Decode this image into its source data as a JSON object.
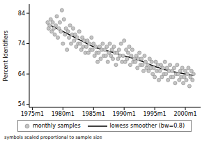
{
  "chart_data": {
    "type": "scatter",
    "y_label": "Percent Identifiers",
    "note": "symbols scaled proportional to sample size",
    "xlim": [
      174,
      510
    ],
    "ylim": [
      53,
      87
    ],
    "xticks": [
      {
        "value": 180,
        "label": "1975m1"
      },
      {
        "value": 240,
        "label": "1980m1"
      },
      {
        "value": 300,
        "label": "1985m1"
      },
      {
        "value": 360,
        "label": "1990m1"
      },
      {
        "value": 420,
        "label": "1995m1"
      },
      {
        "value": 480,
        "label": "2000m1"
      }
    ],
    "yticks": [
      54,
      64,
      74,
      84
    ],
    "legend": "bottom",
    "series": [
      {
        "name": "monthly samples",
        "type": "scatter",
        "marker": "circle",
        "color": "#c4c4c4",
        "x": [
          210,
          212,
          214,
          216,
          218,
          220,
          222,
          224,
          226,
          228,
          230,
          232,
          234,
          236,
          238,
          240,
          242,
          244,
          246,
          248,
          250,
          252,
          254,
          256,
          258,
          260,
          262,
          264,
          266,
          268,
          270,
          272,
          274,
          276,
          278,
          280,
          282,
          284,
          286,
          288,
          290,
          292,
          294,
          296,
          298,
          300,
          302,
          304,
          306,
          308,
          310,
          312,
          314,
          316,
          318,
          320,
          322,
          324,
          326,
          328,
          330,
          332,
          334,
          336,
          338,
          340,
          342,
          344,
          346,
          348,
          350,
          352,
          354,
          356,
          358,
          360,
          362,
          364,
          366,
          368,
          370,
          372,
          374,
          376,
          378,
          380,
          382,
          384,
          386,
          388,
          390,
          392,
          394,
          396,
          398,
          400,
          402,
          404,
          406,
          408,
          410,
          412,
          414,
          416,
          418,
          420,
          422,
          424,
          426,
          428,
          430,
          432,
          434,
          436,
          438,
          440,
          442,
          444,
          446,
          448,
          450,
          452,
          454,
          456,
          458,
          460,
          462,
          464,
          466,
          468,
          470,
          472,
          474,
          476,
          478,
          480,
          482,
          484,
          486,
          488,
          490,
          492,
          494,
          496
        ],
        "values": [
          81,
          79,
          80,
          82,
          78,
          81,
          79,
          77,
          80,
          83,
          76,
          79,
          81,
          78,
          85,
          74,
          82,
          77,
          79,
          72,
          78,
          76,
          80,
          74,
          77,
          79,
          75,
          77,
          73,
          76,
          74,
          78,
          74,
          72,
          76,
          73,
          75,
          71,
          73,
          75,
          71,
          74,
          72,
          76,
          72,
          74,
          70,
          73,
          71,
          68,
          71,
          73,
          69,
          72,
          74,
          70,
          72,
          70,
          73,
          68,
          71,
          74,
          70,
          72,
          69,
          73,
          71,
          67,
          71,
          69,
          72,
          70,
          74,
          68,
          70,
          75,
          68,
          72,
          69,
          71,
          73,
          67,
          70,
          72,
          68,
          69,
          68,
          70,
          66,
          69,
          71,
          67,
          69,
          67,
          65,
          70,
          68,
          66,
          67,
          65,
          69,
          66,
          68,
          64,
          66,
          63,
          68,
          65,
          67,
          62,
          65,
          67,
          63,
          66,
          64,
          68,
          64,
          66,
          62,
          65,
          67,
          63,
          65,
          63,
          66,
          61,
          64,
          67,
          64,
          62,
          65,
          63,
          66,
          61,
          63,
          65,
          62,
          64,
          66,
          60,
          63,
          65,
          62,
          64
        ]
      },
      {
        "name": "lowess smoother (bw=0.8)",
        "type": "line",
        "color": "#000000",
        "x": [
          210,
          240,
          270,
          300,
          330,
          360,
          390,
          420,
          450,
          480,
          496
        ],
        "values": [
          80.5,
          78,
          75.5,
          73,
          71.5,
          70,
          68.5,
          66.5,
          65,
          64,
          63.5
        ]
      }
    ]
  }
}
